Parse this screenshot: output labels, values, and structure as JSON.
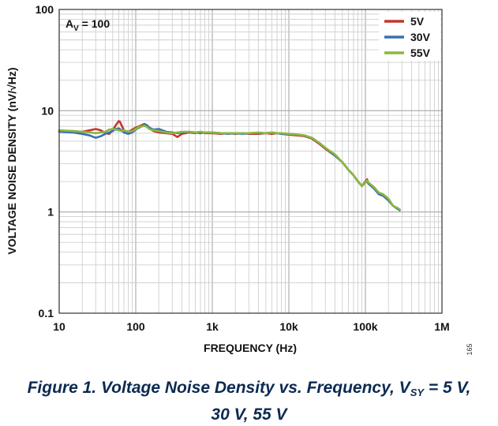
{
  "chart_data": {
    "type": "line",
    "title": "",
    "xlabel": "FREQUENCY (Hz)",
    "ylabel": "VOLTAGE NOISE DENSITY (nV/√Hz)",
    "xscale": "log",
    "yscale": "log",
    "xlim": [
      10,
      1000000
    ],
    "ylim": [
      0.1,
      100
    ],
    "grid": true,
    "legend_position": "top-right",
    "x_tick_labels": [
      "10",
      "100",
      "1k",
      "10k",
      "100k",
      "1M"
    ],
    "y_tick_labels": [
      "0.1",
      "1",
      "10",
      "100"
    ],
    "annotation": {
      "main": "A",
      "sub": "V",
      "rest": " = 100"
    },
    "figure_number": "165",
    "series": [
      {
        "name": "5V",
        "color": "#c0392b",
        "x": [
          10,
          15,
          20,
          25,
          30,
          35,
          40,
          45,
          50,
          55,
          60,
          62,
          65,
          70,
          80,
          90,
          100,
          110,
          120,
          130,
          140,
          150,
          170,
          200,
          250,
          300,
          350,
          400,
          500,
          600,
          700,
          800,
          1000,
          1300,
          1600,
          2000,
          2500,
          3000,
          4000,
          5000,
          6000,
          7000,
          8000,
          10000,
          13000,
          16000,
          20000,
          25000,
          30000,
          40000,
          50000,
          60000,
          70000,
          80000,
          90000,
          100000,
          105000,
          110000,
          130000,
          150000,
          170000,
          200000,
          230000,
          260000,
          280000
        ],
        "values": [
          6.3,
          6.3,
          6.2,
          6.4,
          6.6,
          6.4,
          6.0,
          5.9,
          6.4,
          7.2,
          7.9,
          7.8,
          7.2,
          6.4,
          6.2,
          6.5,
          6.8,
          7.0,
          7.2,
          7.4,
          7.1,
          6.7,
          6.3,
          6.1,
          6.0,
          5.9,
          5.5,
          5.9,
          6.1,
          6.0,
          6.2,
          6.0,
          6.0,
          5.9,
          6.0,
          5.9,
          6.0,
          5.9,
          5.9,
          6.0,
          5.9,
          6.0,
          5.9,
          5.8,
          5.7,
          5.6,
          5.3,
          4.7,
          4.2,
          3.6,
          3.1,
          2.6,
          2.3,
          2.0,
          1.8,
          2.0,
          2.1,
          1.9,
          1.7,
          1.5,
          1.45,
          1.3,
          1.15,
          1.08,
          1.05
        ]
      },
      {
        "name": "30V",
        "color": "#3a6fb5",
        "x": [
          10,
          15,
          20,
          25,
          30,
          35,
          40,
          45,
          50,
          55,
          60,
          65,
          70,
          80,
          90,
          100,
          110,
          120,
          130,
          140,
          150,
          170,
          200,
          250,
          300,
          350,
          400,
          500,
          600,
          700,
          800,
          1000,
          1300,
          1600,
          2000,
          2500,
          3000,
          4000,
          5000,
          6000,
          7000,
          8000,
          10000,
          13000,
          16000,
          20000,
          25000,
          30000,
          40000,
          50000,
          60000,
          70000,
          80000,
          90000,
          100000,
          105000,
          110000,
          130000,
          150000,
          170000,
          200000,
          230000,
          260000,
          280000
        ],
        "values": [
          6.2,
          6.1,
          5.9,
          5.7,
          5.4,
          5.6,
          5.9,
          6.1,
          6.3,
          6.6,
          6.7,
          6.4,
          6.1,
          5.9,
          6.1,
          6.5,
          6.8,
          7.0,
          7.3,
          7.2,
          6.8,
          6.5,
          6.6,
          6.2,
          6.1,
          6.0,
          6.1,
          6.2,
          6.1,
          6.0,
          6.1,
          6.1,
          6.0,
          5.9,
          6.0,
          5.9,
          6.0,
          6.0,
          6.0,
          6.1,
          6.0,
          5.9,
          5.9,
          5.8,
          5.7,
          5.4,
          4.8,
          4.3,
          3.6,
          3.1,
          2.6,
          2.3,
          2.0,
          1.8,
          1.95,
          2.0,
          1.9,
          1.7,
          1.5,
          1.45,
          1.3,
          1.15,
          1.08,
          1.04
        ]
      },
      {
        "name": "55V",
        "color": "#8ab83e",
        "x": [
          10,
          15,
          20,
          25,
          30,
          35,
          40,
          45,
          50,
          55,
          60,
          65,
          70,
          80,
          90,
          100,
          110,
          120,
          130,
          140,
          150,
          170,
          200,
          250,
          300,
          350,
          400,
          500,
          600,
          700,
          800,
          1000,
          1300,
          1600,
          2000,
          2500,
          3000,
          4000,
          5000,
          6000,
          7000,
          8000,
          10000,
          13000,
          16000,
          20000,
          25000,
          30000,
          40000,
          50000,
          60000,
          70000,
          80000,
          90000,
          100000,
          105000,
          110000,
          130000,
          150000,
          170000,
          200000,
          230000,
          260000,
          280000
        ],
        "values": [
          6.4,
          6.3,
          6.2,
          6.1,
          6.0,
          6.1,
          6.2,
          6.5,
          6.6,
          6.5,
          6.4,
          6.3,
          6.4,
          6.2,
          6.3,
          6.6,
          6.9,
          7.0,
          7.1,
          6.9,
          6.6,
          6.4,
          6.3,
          6.1,
          6.0,
          6.1,
          6.2,
          6.2,
          6.1,
          6.2,
          6.1,
          6.1,
          6.0,
          6.0,
          6.0,
          6.0,
          6.0,
          6.1,
          6.0,
          6.1,
          6.0,
          6.0,
          5.9,
          5.8,
          5.7,
          5.4,
          4.8,
          4.3,
          3.7,
          3.1,
          2.6,
          2.3,
          2.0,
          1.8,
          1.95,
          2.05,
          1.95,
          1.75,
          1.55,
          1.5,
          1.35,
          1.15,
          1.1,
          1.06
        ]
      }
    ]
  },
  "caption": {
    "line1_prefix": "Figure 1. Voltage Noise Density vs. Frequency, V",
    "line1_sub": "SY",
    "line1_suffix": " = 5 V,",
    "line2": "30 V, 55 V"
  }
}
